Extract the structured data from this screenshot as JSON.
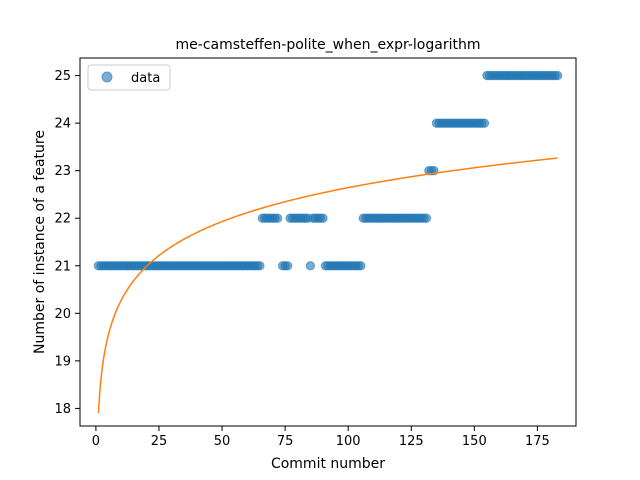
{
  "chart_data": {
    "type": "scatter",
    "title": "me-camsteffen-polite_when_expr-logarithm",
    "xlabel": "Commit number",
    "ylabel": "Number of instance of a feature",
    "xlim": [
      -6.3,
      190.3
    ],
    "ylim": [
      17.63,
      25.37
    ],
    "xticks": [
      0,
      25,
      50,
      75,
      100,
      125,
      150,
      175
    ],
    "yticks": [
      18,
      19,
      20,
      21,
      22,
      23,
      24,
      25
    ],
    "grid": false,
    "legend_position": "top-left",
    "series": [
      {
        "name": "data",
        "kind": "points",
        "color": "#1f77b4",
        "segments": [
          {
            "x_from": 1,
            "x_to": 65,
            "y": 21
          },
          {
            "x_from": 66,
            "x_to": 72,
            "y": 22
          },
          {
            "x_from": 74,
            "x_to": 76,
            "y": 21
          },
          {
            "x_from": 77,
            "x_to": 84,
            "y": 22
          },
          {
            "x_from": 85,
            "x_to": 85,
            "y": 21
          },
          {
            "x_from": 86,
            "x_to": 90,
            "y": 22
          },
          {
            "x_from": 91,
            "x_to": 105,
            "y": 21
          },
          {
            "x_from": 106,
            "x_to": 131,
            "y": 22
          },
          {
            "x_from": 132,
            "x_to": 134,
            "y": 23
          },
          {
            "x_from": 135,
            "x_to": 154,
            "y": 24
          },
          {
            "x_from": 155,
            "x_to": 183,
            "y": 25
          }
        ]
      },
      {
        "name": "",
        "kind": "line",
        "color": "#ff7f0e",
        "model": "logarithmic fit y = 17.9 + 1.03·ln(x)",
        "x_range": [
          1,
          183
        ]
      }
    ],
    "legend": [
      {
        "label": "data",
        "marker": "circle",
        "color": "#1f77b4"
      }
    ]
  }
}
